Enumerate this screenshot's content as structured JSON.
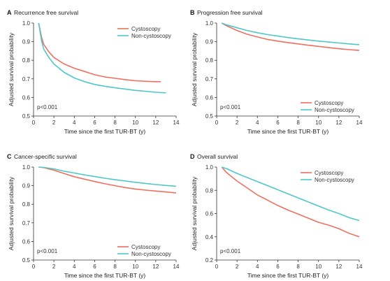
{
  "colors": {
    "cystoscopy": "#f07060",
    "non_cystoscopy": "#50c8c8"
  },
  "chart_data": [
    {
      "type": "line",
      "letter": "A",
      "title": "Recurrence free survival",
      "xlabel": "Time since the first TUR-BT (y)",
      "ylabel": "Adjusted survival probability",
      "xlim": [
        0,
        14
      ],
      "ylim": [
        0.5,
        1.0
      ],
      "xticks": [
        "0",
        "2",
        "4",
        "6",
        "8",
        "10",
        "12",
        "14"
      ],
      "yticks": [
        "0.5",
        "0.6",
        "0.7",
        "0.8",
        "0.9",
        "1.0"
      ],
      "pvalue": "p<0.001",
      "legend_position": "top-right",
      "series": [
        {
          "name": "Cystoscopy",
          "color": "#f07060",
          "x": [
            0.5,
            0.8,
            1.0,
            1.5,
            2.0,
            3.0,
            4.0,
            5.0,
            6.0,
            7.0,
            8.0,
            9.0,
            10.0,
            11.0,
            12.0,
            12.5
          ],
          "y": [
            1.0,
            0.92,
            0.885,
            0.845,
            0.815,
            0.78,
            0.757,
            0.74,
            0.722,
            0.71,
            0.703,
            0.696,
            0.69,
            0.687,
            0.685,
            0.685
          ]
        },
        {
          "name": "Non-cystoscopy",
          "color": "#50c8c8",
          "x": [
            0.5,
            0.8,
            1.0,
            1.5,
            2.0,
            3.0,
            4.0,
            5.0,
            6.0,
            7.0,
            8.0,
            9.0,
            10.0,
            11.0,
            12.0,
            13.0
          ],
          "y": [
            1.0,
            0.9,
            0.86,
            0.815,
            0.78,
            0.735,
            0.705,
            0.685,
            0.67,
            0.66,
            0.652,
            0.645,
            0.638,
            0.633,
            0.628,
            0.625
          ]
        }
      ]
    },
    {
      "type": "line",
      "letter": "B",
      "title": "Progression free survival",
      "xlabel": "Time since the first TUR-BT (y)",
      "ylabel": "Adjusted survival probability",
      "xlim": [
        0,
        14
      ],
      "ylim": [
        0.5,
        1.0
      ],
      "xticks": [
        "0",
        "2",
        "4",
        "6",
        "8",
        "10",
        "12",
        "14"
      ],
      "yticks": [
        "0.5",
        "0.6",
        "0.7",
        "0.8",
        "0.9",
        "1.0"
      ],
      "pvalue": "p<0.001",
      "legend_position": "bottom-right",
      "series": [
        {
          "name": "Cystoscopy",
          "color": "#f07060",
          "x": [
            0.5,
            1.0,
            2.0,
            3.0,
            4.0,
            5.0,
            6.0,
            7.0,
            8.0,
            9.0,
            10.0,
            11.0,
            12.0,
            13.0,
            14.0
          ],
          "y": [
            1.0,
            0.985,
            0.96,
            0.94,
            0.925,
            0.912,
            0.903,
            0.895,
            0.888,
            0.881,
            0.875,
            0.868,
            0.862,
            0.857,
            0.853
          ]
        },
        {
          "name": "Non-cystoscopy",
          "color": "#50c8c8",
          "x": [
            0.5,
            1.0,
            2.0,
            3.0,
            4.0,
            5.0,
            6.0,
            7.0,
            8.0,
            9.0,
            10.0,
            11.0,
            12.0,
            13.0,
            14.0
          ],
          "y": [
            1.0,
            0.99,
            0.975,
            0.96,
            0.948,
            0.938,
            0.93,
            0.922,
            0.915,
            0.909,
            0.903,
            0.898,
            0.893,
            0.888,
            0.884
          ]
        }
      ]
    },
    {
      "type": "line",
      "letter": "C",
      "title": "Cancer-specific survival",
      "xlabel": "Time since the first TUR-BT (y)",
      "ylabel": "Adjusted survival probability",
      "xlim": [
        0,
        14
      ],
      "ylim": [
        0.5,
        1.0
      ],
      "xticks": [
        "0",
        "2",
        "4",
        "6",
        "8",
        "10",
        "12",
        "14"
      ],
      "yticks": [
        "0.5",
        "0.6",
        "0.7",
        "0.8",
        "0.9",
        "1.0"
      ],
      "pvalue": "p<0.001",
      "legend_position": "bottom-right",
      "series": [
        {
          "name": "Cystoscopy",
          "color": "#f07060",
          "x": [
            0.5,
            1.0,
            2.0,
            3.0,
            4.0,
            5.0,
            6.0,
            7.0,
            8.0,
            9.0,
            10.0,
            11.0,
            12.0,
            13.0,
            14.0
          ],
          "y": [
            1.0,
            0.997,
            0.983,
            0.965,
            0.948,
            0.935,
            0.922,
            0.91,
            0.9,
            0.89,
            0.882,
            0.876,
            0.871,
            0.866,
            0.861
          ]
        },
        {
          "name": "Non-cystoscopy",
          "color": "#50c8c8",
          "x": [
            0.5,
            1.0,
            2.0,
            3.0,
            4.0,
            5.0,
            6.0,
            7.0,
            8.0,
            9.0,
            10.0,
            11.0,
            12.0,
            13.0,
            14.0
          ],
          "y": [
            1.0,
            0.998,
            0.99,
            0.978,
            0.968,
            0.958,
            0.949,
            0.94,
            0.932,
            0.925,
            0.918,
            0.912,
            0.906,
            0.901,
            0.897
          ]
        }
      ]
    },
    {
      "type": "line",
      "letter": "D",
      "title": "Overall survival",
      "xlabel": "Time since the first TUR-BT (y)",
      "ylabel": "Adjusted survival probability",
      "xlim": [
        0,
        14
      ],
      "ylim": [
        0.2,
        1.0
      ],
      "xticks": [
        "0",
        "2",
        "4",
        "6",
        "8",
        "10",
        "12",
        "14"
      ],
      "yticks": [
        "0.2",
        "0.4",
        "0.6",
        "0.8",
        "1.0"
      ],
      "pvalue": "p<0.001",
      "legend_position": "top-right",
      "series": [
        {
          "name": "Cystoscopy",
          "color": "#f07060",
          "x": [
            0.5,
            1.0,
            2.0,
            3.0,
            4.0,
            5.0,
            6.0,
            7.0,
            8.0,
            9.0,
            10.0,
            11.0,
            12.0,
            13.0,
            14.0
          ],
          "y": [
            1.0,
            0.95,
            0.88,
            0.82,
            0.76,
            0.715,
            0.67,
            0.63,
            0.595,
            0.56,
            0.525,
            0.5,
            0.47,
            0.43,
            0.4
          ]
        },
        {
          "name": "Non-cystoscopy",
          "color": "#50c8c8",
          "x": [
            0.5,
            1.0,
            2.0,
            3.0,
            4.0,
            5.0,
            6.0,
            7.0,
            8.0,
            9.0,
            10.0,
            11.0,
            12.0,
            13.0,
            14.0
          ],
          "y": [
            1.0,
            0.985,
            0.945,
            0.91,
            0.875,
            0.84,
            0.805,
            0.77,
            0.735,
            0.7,
            0.665,
            0.63,
            0.6,
            0.565,
            0.54
          ]
        }
      ]
    }
  ]
}
